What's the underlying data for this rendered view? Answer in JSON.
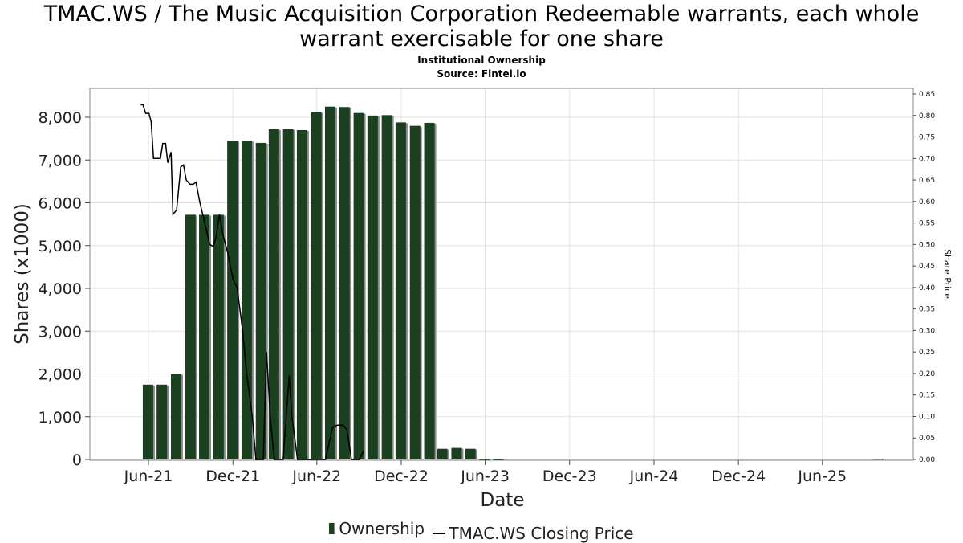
{
  "chart_data": {
    "type": "bar",
    "title": "TMAC.WS / The Music Acquisition Corporation Redeemable warrants, each whole warrant exercisable for one share",
    "subtitle_lines": [
      "Institutional Ownership",
      "Source: Fintel.io"
    ],
    "xlabel": "Date",
    "ylabel": "Shares (x1000)",
    "y2label": "Share Price",
    "ylim": [
      0,
      8500
    ],
    "y2lim": [
      0,
      0.85
    ],
    "y_ticks": [
      0,
      1000,
      2000,
      3000,
      4000,
      5000,
      6000,
      7000,
      8000
    ],
    "y_tick_labels": [
      "0",
      "1,000",
      "2,000",
      "3,000",
      "4,000",
      "5,000",
      "6,000",
      "7,000",
      "8,000"
    ],
    "y2_ticks": [
      "0.00",
      "0.05",
      "0.10",
      "0.15",
      "0.20",
      "0.25",
      "0.30",
      "0.35",
      "0.40",
      "0.45",
      "0.50",
      "0.55",
      "0.60",
      "0.65",
      "0.70",
      "0.75",
      "0.80",
      "0.85"
    ],
    "x_ticks": [
      {
        "date": "2021-06-01",
        "label": "Jun-21"
      },
      {
        "date": "2021-12-01",
        "label": "Dec-21"
      },
      {
        "date": "2022-06-01",
        "label": "Jun-22"
      },
      {
        "date": "2022-12-01",
        "label": "Dec-22"
      },
      {
        "date": "2023-06-01",
        "label": "Jun-23"
      },
      {
        "date": "2023-12-01",
        "label": "Dec-23"
      },
      {
        "date": "2024-06-01",
        "label": "Jun-24"
      },
      {
        "date": "2024-12-01",
        "label": "Dec-24"
      },
      {
        "date": "2025-06-01",
        "label": "Jun-25"
      }
    ],
    "x_range": [
      "2021-01-25",
      "2025-12-15"
    ],
    "grid": true,
    "legend_position": "bottom",
    "series": [
      {
        "name": "Ownership",
        "type": "bar",
        "color": "#1a4020",
        "points": [
          {
            "date": "2021-05-31",
            "value": 1750
          },
          {
            "date": "2021-06-30",
            "value": 1750
          },
          {
            "date": "2021-07-31",
            "value": 2000
          },
          {
            "date": "2021-08-31",
            "value": 5720
          },
          {
            "date": "2021-09-30",
            "value": 5720
          },
          {
            "date": "2021-10-31",
            "value": 5720
          },
          {
            "date": "2021-11-30",
            "value": 7450
          },
          {
            "date": "2021-12-31",
            "value": 7450
          },
          {
            "date": "2022-01-31",
            "value": 7400
          },
          {
            "date": "2022-02-28",
            "value": 7720
          },
          {
            "date": "2022-03-31",
            "value": 7720
          },
          {
            "date": "2022-04-30",
            "value": 7700
          },
          {
            "date": "2022-05-31",
            "value": 8120
          },
          {
            "date": "2022-06-30",
            "value": 8250
          },
          {
            "date": "2022-07-31",
            "value": 8240
          },
          {
            "date": "2022-08-31",
            "value": 8100
          },
          {
            "date": "2022-09-30",
            "value": 8040
          },
          {
            "date": "2022-10-31",
            "value": 8050
          },
          {
            "date": "2022-11-30",
            "value": 7880
          },
          {
            "date": "2022-12-31",
            "value": 7800
          },
          {
            "date": "2023-01-31",
            "value": 7870
          },
          {
            "date": "2023-02-28",
            "value": 250
          },
          {
            "date": "2023-03-31",
            "value": 270
          },
          {
            "date": "2023-04-30",
            "value": 250
          },
          {
            "date": "2023-05-31",
            "value": 5
          },
          {
            "date": "2023-06-30",
            "value": 5
          },
          {
            "date": "2025-09-30",
            "value": 15
          }
        ]
      },
      {
        "name": "TMAC.WS Closing Price",
        "type": "line",
        "color": "#000000",
        "points": [
          {
            "date": "2021-05-15",
            "value": 0.825
          },
          {
            "date": "2021-05-20",
            "value": 0.825
          },
          {
            "date": "2021-05-26",
            "value": 0.805
          },
          {
            "date": "2021-06-02",
            "value": 0.805
          },
          {
            "date": "2021-06-07",
            "value": 0.785
          },
          {
            "date": "2021-06-12",
            "value": 0.7
          },
          {
            "date": "2021-06-20",
            "value": 0.7
          },
          {
            "date": "2021-06-27",
            "value": 0.7
          },
          {
            "date": "2021-07-02",
            "value": 0.735
          },
          {
            "date": "2021-07-08",
            "value": 0.735
          },
          {
            "date": "2021-07-13",
            "value": 0.69
          },
          {
            "date": "2021-07-20",
            "value": 0.715
          },
          {
            "date": "2021-07-24",
            "value": 0.57
          },
          {
            "date": "2021-08-01",
            "value": 0.58
          },
          {
            "date": "2021-08-05",
            "value": 0.625
          },
          {
            "date": "2021-08-10",
            "value": 0.68
          },
          {
            "date": "2021-08-16",
            "value": 0.685
          },
          {
            "date": "2021-08-22",
            "value": 0.65
          },
          {
            "date": "2021-08-30",
            "value": 0.64
          },
          {
            "date": "2021-09-06",
            "value": 0.64
          },
          {
            "date": "2021-09-12",
            "value": 0.645
          },
          {
            "date": "2021-09-20",
            "value": 0.6
          },
          {
            "date": "2021-10-01",
            "value": 0.55
          },
          {
            "date": "2021-10-12",
            "value": 0.5
          },
          {
            "date": "2021-10-20",
            "value": 0.495
          },
          {
            "date": "2021-10-26",
            "value": 0.52
          },
          {
            "date": "2021-11-02",
            "value": 0.57
          },
          {
            "date": "2021-11-10",
            "value": 0.52
          },
          {
            "date": "2021-11-20",
            "value": 0.48
          },
          {
            "date": "2021-12-01",
            "value": 0.42
          },
          {
            "date": "2021-12-10",
            "value": 0.4
          },
          {
            "date": "2021-12-22",
            "value": 0.3
          },
          {
            "date": "2021-12-31",
            "value": 0.2
          },
          {
            "date": "2022-01-12",
            "value": 0.1
          },
          {
            "date": "2022-01-20",
            "value": 0.0
          },
          {
            "date": "2022-02-05",
            "value": 0.0
          },
          {
            "date": "2022-02-12",
            "value": 0.25
          },
          {
            "date": "2022-02-20",
            "value": 0.1
          },
          {
            "date": "2022-03-01",
            "value": 0.0
          },
          {
            "date": "2022-03-20",
            "value": 0.0
          },
          {
            "date": "2022-04-02",
            "value": 0.195
          },
          {
            "date": "2022-04-08",
            "value": 0.1
          },
          {
            "date": "2022-04-20",
            "value": 0.0
          },
          {
            "date": "2022-05-10",
            "value": 0.0
          },
          {
            "date": "2022-06-05",
            "value": 0.0
          },
          {
            "date": "2022-06-20",
            "value": 0.0
          },
          {
            "date": "2022-07-05",
            "value": 0.075
          },
          {
            "date": "2022-07-15",
            "value": 0.08
          },
          {
            "date": "2022-07-28",
            "value": 0.08
          },
          {
            "date": "2022-08-05",
            "value": 0.07
          },
          {
            "date": "2022-08-15",
            "value": 0.0
          },
          {
            "date": "2022-09-01",
            "value": 0.0
          },
          {
            "date": "2022-09-10",
            "value": 0.02
          }
        ]
      }
    ]
  },
  "legend": {
    "items": [
      {
        "label": "Ownership",
        "kind": "bar"
      },
      {
        "label": "TMAC.WS Closing Price",
        "kind": "line"
      }
    ]
  }
}
